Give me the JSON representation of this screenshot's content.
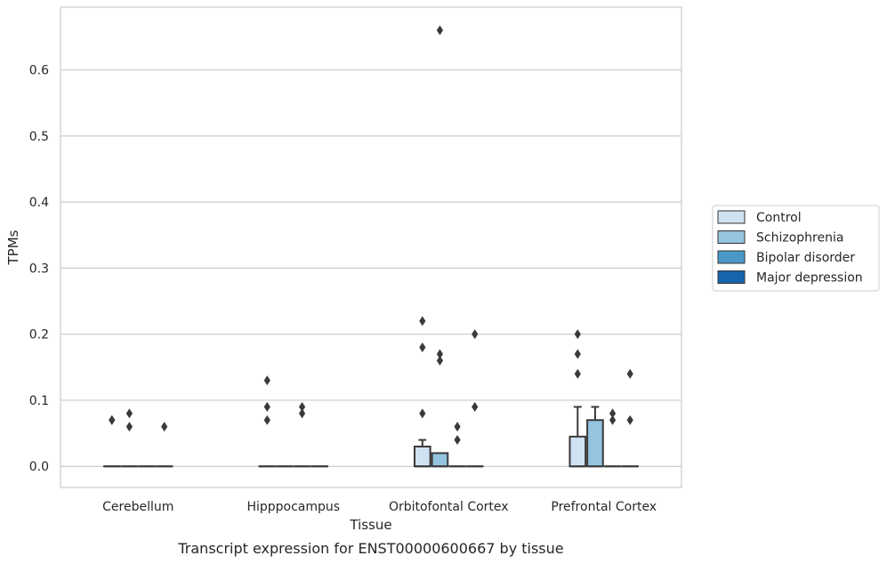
{
  "chart_data": {
    "type": "box",
    "title": "",
    "caption": "Transcript expression for ENST00000600667 by tissue",
    "xlabel": "Tissue",
    "ylabel": "TPMs",
    "ylim": [
      -0.032,
      0.695
    ],
    "yticks": [
      0.0,
      0.1,
      0.2,
      0.3,
      0.4,
      0.5,
      0.6
    ],
    "ytick_labels": [
      "0.0",
      "0.1",
      "0.2",
      "0.3",
      "0.4",
      "0.5",
      "0.6"
    ],
    "grid": true,
    "legend_position": "right",
    "categories": [
      "Cerebellum",
      "Hipppocampus",
      "Orbitofontal Cortex",
      "Prefrontal Cortex"
    ],
    "series": [
      {
        "name": "Control",
        "color": "#d0e1f2",
        "boxes": [
          {
            "q1": 0,
            "median": 0,
            "q3": 0,
            "whisker_low": 0,
            "whisker_high": 0,
            "outliers": [
              0.07,
              0.07
            ]
          },
          {
            "q1": 0,
            "median": 0,
            "q3": 0,
            "whisker_low": 0,
            "whisker_high": 0,
            "outliers": [
              0.13,
              0.09,
              0.07
            ]
          },
          {
            "q1": 0,
            "median": 0,
            "q3": 0.03,
            "whisker_low": 0,
            "whisker_high": 0.04,
            "outliers": [
              0.22,
              0.18,
              0.08
            ]
          },
          {
            "q1": 0,
            "median": 0,
            "q3": 0.045,
            "whisker_low": 0,
            "whisker_high": 0.09,
            "outliers": [
              0.2,
              0.17,
              0.14
            ]
          }
        ]
      },
      {
        "name": "Schizophrenia",
        "color": "#94c4df",
        "boxes": [
          {
            "q1": 0,
            "median": 0,
            "q3": 0,
            "whisker_low": 0,
            "whisker_high": 0,
            "outliers": [
              0.08,
              0.06
            ]
          },
          {
            "q1": 0,
            "median": 0,
            "q3": 0,
            "whisker_low": 0,
            "whisker_high": 0,
            "outliers": []
          },
          {
            "q1": 0,
            "median": 0,
            "q3": 0.02,
            "whisker_low": 0,
            "whisker_high": 0.02,
            "outliers": [
              0.66,
              0.17,
              0.16
            ]
          },
          {
            "q1": 0,
            "median": 0,
            "q3": 0.07,
            "whisker_low": 0,
            "whisker_high": 0.09,
            "outliers": []
          }
        ]
      },
      {
        "name": "Bipolar disorder",
        "color": "#4a98c9",
        "boxes": [
          {
            "q1": 0,
            "median": 0,
            "q3": 0,
            "whisker_low": 0,
            "whisker_high": 0,
            "outliers": []
          },
          {
            "q1": 0,
            "median": 0,
            "q3": 0,
            "whisker_low": 0,
            "whisker_high": 0,
            "outliers": [
              0.09,
              0.08
            ]
          },
          {
            "q1": 0,
            "median": 0,
            "q3": 0,
            "whisker_low": 0,
            "whisker_high": 0,
            "outliers": [
              0.06,
              0.04
            ]
          },
          {
            "q1": 0,
            "median": 0,
            "q3": 0,
            "whisker_low": 0,
            "whisker_high": 0,
            "outliers": [
              0.08,
              0.07
            ]
          }
        ]
      },
      {
        "name": "Major depression",
        "color": "#1764ab",
        "boxes": [
          {
            "q1": 0,
            "median": 0,
            "q3": 0,
            "whisker_low": 0,
            "whisker_high": 0,
            "outliers": [
              0.06
            ]
          },
          {
            "q1": 0,
            "median": 0,
            "q3": 0,
            "whisker_low": 0,
            "whisker_high": 0,
            "outliers": []
          },
          {
            "q1": 0,
            "median": 0,
            "q3": 0,
            "whisker_low": 0,
            "whisker_high": 0,
            "outliers": [
              0.2,
              0.09
            ]
          },
          {
            "q1": 0,
            "median": 0,
            "q3": 0,
            "whisker_low": 0,
            "whisker_high": 0,
            "outliers": [
              0.14,
              0.07
            ]
          }
        ]
      }
    ]
  }
}
